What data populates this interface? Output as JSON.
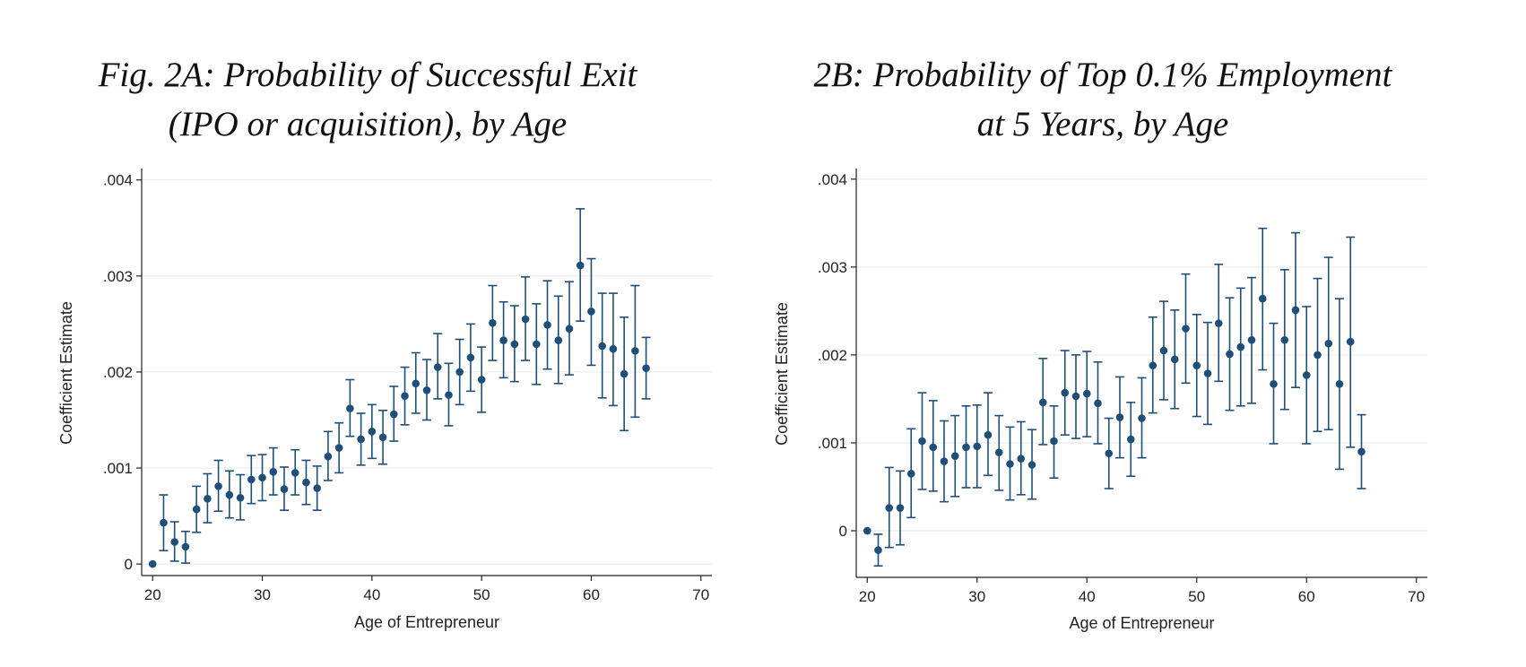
{
  "figure": {
    "panel_a_title_line1": "Fig. 2A: Probability of Successful Exit",
    "panel_a_title_line2": "(IPO or acquisition), by Age",
    "panel_b_title_line1": "2B: Probability of Top 0.1% Employment",
    "panel_b_title_line2": "at 5 Years, by Age"
  },
  "colors": {
    "marker": "#1f4e79",
    "errorbar": "#1f4e79",
    "grid": "#e8ecef",
    "axis": "#222222"
  },
  "chart_data": [
    {
      "type": "scatter",
      "title": "Fig. 2A: Probability of Successful Exit (IPO or acquisition), by Age",
      "xlabel": "Age of Entrepreneur",
      "ylabel": "Coefficient Estimate",
      "xlim": [
        19,
        71
      ],
      "ylim": [
        -0.00012,
        0.0041
      ],
      "xticks": [
        20,
        30,
        40,
        50,
        60,
        70
      ],
      "xtick_labels": [
        "20",
        "30",
        "40",
        "50",
        "60",
        "70"
      ],
      "yticks": [
        0,
        0.001,
        0.002,
        0.003,
        0.004
      ],
      "ytick_labels": [
        "0",
        ".001",
        ".002",
        ".003",
        ".004"
      ],
      "grid": true,
      "error_bars": true,
      "x": [
        20,
        21,
        22,
        23,
        24,
        25,
        26,
        27,
        28,
        29,
        30,
        31,
        32,
        33,
        34,
        35,
        36,
        37,
        38,
        39,
        40,
        41,
        42,
        43,
        44,
        45,
        46,
        47,
        48,
        49,
        50,
        51,
        52,
        53,
        54,
        55,
        56,
        57,
        58,
        59,
        60,
        61,
        62,
        63,
        64,
        65
      ],
      "y": [
        0,
        0.00043,
        0.00023,
        0.00018,
        0.00057,
        0.00068,
        0.00081,
        0.00072,
        0.00069,
        0.00088,
        0.0009,
        0.00096,
        0.00078,
        0.00095,
        0.00085,
        0.00079,
        0.00112,
        0.00121,
        0.00162,
        0.0013,
        0.00138,
        0.00132,
        0.00156,
        0.00175,
        0.00188,
        0.00181,
        0.00205,
        0.00176,
        0.002,
        0.00215,
        0.00192,
        0.00251,
        0.00233,
        0.00229,
        0.00255,
        0.00229,
        0.00249,
        0.00233,
        0.00245,
        0.00311,
        0.00263,
        0.00227,
        0.00224,
        0.00198,
        0.00222,
        0.00204
      ],
      "y_low": [
        0,
        0.00014,
        3e-05,
        1e-05,
        0.00033,
        0.00043,
        0.00055,
        0.00048,
        0.00046,
        0.00063,
        0.00066,
        0.00072,
        0.00056,
        0.00072,
        0.00062,
        0.00056,
        0.00087,
        0.00095,
        0.00133,
        0.00103,
        0.0011,
        0.00104,
        0.00128,
        0.00145,
        0.00157,
        0.0015,
        0.00172,
        0.00144,
        0.00166,
        0.0018,
        0.00158,
        0.00212,
        0.00194,
        0.0019,
        0.00212,
        0.00187,
        0.00203,
        0.00188,
        0.00197,
        0.00253,
        0.00207,
        0.00173,
        0.00165,
        0.00139,
        0.00153,
        0.00172
      ],
      "y_high": [
        0,
        0.00072,
        0.00044,
        0.00034,
        0.00081,
        0.00094,
        0.00108,
        0.00097,
        0.00093,
        0.00113,
        0.00114,
        0.00121,
        0.00101,
        0.00119,
        0.00108,
        0.00102,
        0.00138,
        0.00147,
        0.00192,
        0.00157,
        0.00166,
        0.0016,
        0.00185,
        0.00205,
        0.0022,
        0.00213,
        0.0024,
        0.00209,
        0.00234,
        0.0025,
        0.00226,
        0.0029,
        0.00273,
        0.00269,
        0.00299,
        0.00271,
        0.00295,
        0.00279,
        0.00294,
        0.0037,
        0.00318,
        0.00282,
        0.00282,
        0.00257,
        0.0029,
        0.00236
      ]
    },
    {
      "type": "scatter",
      "title": "2B: Probability of Top 0.1% Employment at 5 Years, by Age",
      "xlabel": "Age of Entrepreneur",
      "ylabel": "Coefficient Estimate",
      "xlim": [
        19,
        71
      ],
      "ylim": [
        -0.00053,
        0.0041
      ],
      "xticks": [
        20,
        30,
        40,
        50,
        60,
        70
      ],
      "xtick_labels": [
        "20",
        "30",
        "40",
        "50",
        "60",
        "70"
      ],
      "yticks": [
        0,
        0.001,
        0.002,
        0.003,
        0.004
      ],
      "ytick_labels": [
        "0",
        ".001",
        ".002",
        ".003",
        ".004"
      ],
      "grid": true,
      "error_bars": true,
      "x": [
        20,
        21,
        22,
        23,
        24,
        25,
        26,
        27,
        28,
        29,
        30,
        31,
        32,
        33,
        34,
        35,
        36,
        37,
        38,
        39,
        40,
        41,
        42,
        43,
        44,
        45,
        46,
        47,
        48,
        49,
        50,
        51,
        52,
        53,
        54,
        55,
        56,
        57,
        58,
        59,
        60,
        61,
        62,
        63,
        64,
        65
      ],
      "y": [
        0,
        -0.00022,
        0.00026,
        0.00026,
        0.00065,
        0.00102,
        0.00095,
        0.00079,
        0.00085,
        0.00095,
        0.00096,
        0.00109,
        0.00089,
        0.00076,
        0.00082,
        0.00075,
        0.00146,
        0.00102,
        0.00157,
        0.00153,
        0.00156,
        0.00145,
        0.00088,
        0.00129,
        0.00104,
        0.00128,
        0.00188,
        0.00205,
        0.00195,
        0.0023,
        0.00188,
        0.00179,
        0.00236,
        0.00201,
        0.00209,
        0.00217,
        0.00264,
        0.00167,
        0.00217,
        0.00251,
        0.00177,
        0.002,
        0.00213,
        0.00167,
        0.00215,
        0.0009
      ],
      "y_low": [
        0,
        -0.0004,
        -0.00019,
        -0.00016,
        0.00015,
        0.00047,
        0.00045,
        0.00033,
        0.00039,
        0.00049,
        0.00049,
        0.00063,
        0.00046,
        0.00035,
        0.00041,
        0.00036,
        0.00098,
        0.0006,
        0.00109,
        0.00105,
        0.00107,
        0.00099,
        0.00048,
        0.00083,
        0.00062,
        0.00083,
        0.00134,
        0.00149,
        0.00139,
        0.00168,
        0.0013,
        0.00121,
        0.0017,
        0.00137,
        0.00142,
        0.00145,
        0.00183,
        0.00099,
        0.00138,
        0.00163,
        0.00099,
        0.00113,
        0.00115,
        0.0007,
        0.00095,
        0.00048
      ],
      "y_high": [
        0,
        -4e-05,
        0.00072,
        0.00068,
        0.00116,
        0.00157,
        0.00148,
        0.00125,
        0.00131,
        0.00142,
        0.00143,
        0.00157,
        0.00131,
        0.00118,
        0.00124,
        0.00115,
        0.00196,
        0.00142,
        0.00205,
        0.002,
        0.00204,
        0.00192,
        0.00128,
        0.00175,
        0.00146,
        0.00174,
        0.00243,
        0.00261,
        0.00251,
        0.00292,
        0.00246,
        0.00237,
        0.00303,
        0.00265,
        0.00276,
        0.00288,
        0.00344,
        0.00236,
        0.00297,
        0.00339,
        0.00255,
        0.00287,
        0.00311,
        0.00264,
        0.00334,
        0.00132
      ]
    }
  ]
}
